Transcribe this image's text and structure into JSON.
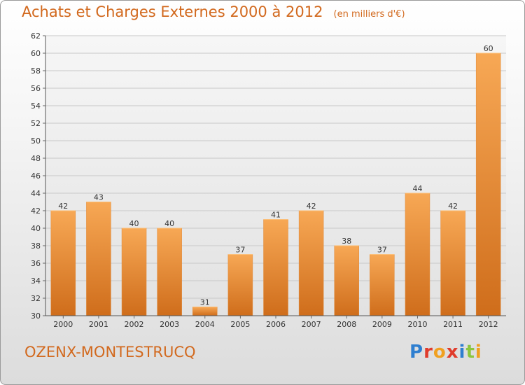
{
  "header": {
    "title": "Achats et Charges Externes 2000 à 2012",
    "subtitle": "(en milliers d'€)"
  },
  "footer": {
    "commune": "OZENX-MONTESTRUCQ",
    "logo_text": "Proxiti"
  },
  "colors": {
    "title": "#d2691e",
    "bar_light": "#f5a24f",
    "bar_dark": "#d06e1c",
    "grid": "#c8c8c8"
  },
  "chart_data": {
    "type": "bar",
    "title": "Achats et Charges Externes 2000 à 2012",
    "subtitle": "(en milliers d'€)",
    "categories": [
      "2000",
      "2001",
      "2002",
      "2003",
      "2004",
      "2005",
      "2006",
      "2007",
      "2008",
      "2009",
      "2010",
      "2011",
      "2012"
    ],
    "values": [
      42,
      43,
      40,
      40,
      31,
      37,
      41,
      42,
      38,
      37,
      44,
      42,
      60
    ],
    "ylim": [
      30,
      62
    ],
    "yticks": [
      30,
      32,
      34,
      36,
      38,
      40,
      42,
      44,
      46,
      48,
      50,
      52,
      54,
      56,
      58,
      60,
      62
    ],
    "grid": true,
    "data_labels": true
  }
}
